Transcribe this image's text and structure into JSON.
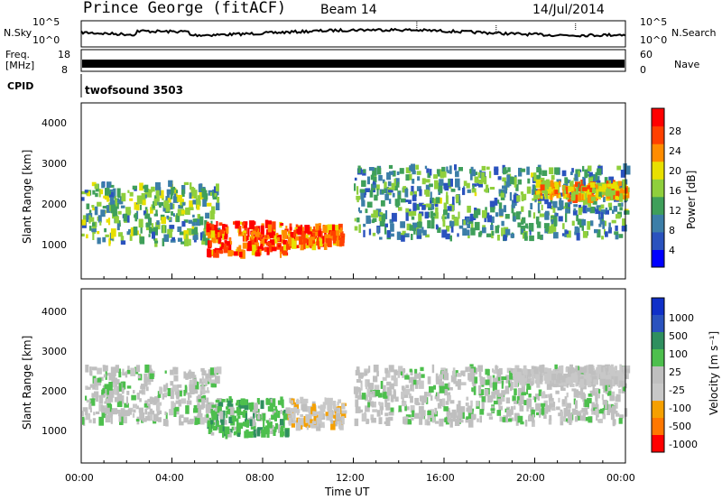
{
  "header": {
    "site": "Prince George (fitACF)",
    "beam": "Beam 14",
    "date": "14/Jul/2014"
  },
  "status_panels": {
    "nsky_label": "N.Sky",
    "nsearch_label": "N.Search",
    "log_ticks": [
      "10^5",
      "10^0"
    ],
    "freq_label_1": "Freq.",
    "freq_label_2": "[MHz]",
    "freq_ticks": [
      "18",
      "8"
    ],
    "nave_label": "Nave",
    "nave_ticks": [
      "60",
      "0"
    ],
    "cpid_label": "CPID",
    "cpid_value": "twofsound 3503"
  },
  "x_axis": {
    "label": "Time UT",
    "ticks": [
      "00:00",
      "04:00",
      "08:00",
      "12:00",
      "16:00",
      "20:00",
      "00:00"
    ]
  },
  "colors": {
    "power_scale": [
      "#0000ff",
      "#2a52be",
      "#3c7ea8",
      "#3f9f5a",
      "#8fcf3c",
      "#e8e000",
      "#ff8c00",
      "#ff4000",
      "#ff0000"
    ],
    "velocity_scale": [
      "#ff0000",
      "#ff7700",
      "#f5a000",
      "#c8c8c8",
      "#bfbfbf",
      "#4dbf4d",
      "#2f8f5f",
      "#2a52be",
      "#1030c8"
    ]
  },
  "chart_data": [
    {
      "type": "heatmap",
      "panel": "power",
      "x": [
        "00:00",
        "04:00",
        "08:00",
        "12:00",
        "16:00",
        "20:00",
        "00:00"
      ],
      "ylabel": "Slant Range [km]",
      "y_ticks": [
        1000,
        2000,
        3000,
        4000
      ],
      "ylim": [
        200,
        4600
      ],
      "colorbar_label": "Power [dB]",
      "colorbar_ticks": [
        4,
        8,
        12,
        16,
        20,
        24,
        28
      ],
      "zlim": [
        0,
        30
      ],
      "features": [
        {
          "t_start_h": 0.0,
          "t_end_h": 6.0,
          "range_km": [
            1100,
            2600
          ],
          "level_db": 12
        },
        {
          "t_start_h": 5.5,
          "t_end_h": 9.0,
          "range_km": [
            800,
            1600
          ],
          "level_db": 26
        },
        {
          "t_start_h": 9.0,
          "t_end_h": 11.5,
          "range_km": [
            1000,
            1500
          ],
          "level_db": 24
        },
        {
          "t_start_h": 12.0,
          "t_end_h": 24.0,
          "range_km": [
            1200,
            3000
          ],
          "level_db": 10
        },
        {
          "t_start_h": 20.0,
          "t_end_h": 24.0,
          "range_km": [
            2200,
            2600
          ],
          "level_db": 20
        }
      ]
    },
    {
      "type": "heatmap",
      "panel": "velocity",
      "x": [
        "00:00",
        "04:00",
        "08:00",
        "12:00",
        "16:00",
        "20:00",
        "00:00"
      ],
      "ylabel": "Slant Range [km]",
      "y_ticks": [
        1000,
        2000,
        3000,
        4000
      ],
      "ylim": [
        200,
        4600
      ],
      "colorbar_label": "Velocity [m s⁻¹]",
      "colorbar_ticks": [
        1000,
        500,
        100,
        25,
        -25,
        -100,
        -500,
        -1000
      ],
      "zlim": [
        -1200,
        1200
      ],
      "features": [
        {
          "t_start_h": 0.0,
          "t_end_h": 6.0,
          "range_km": [
            1200,
            2600
          ],
          "velocity": 0
        },
        {
          "t_start_h": 5.5,
          "t_end_h": 9.0,
          "range_km": [
            900,
            1800
          ],
          "velocity": 300
        },
        {
          "t_start_h": 9.0,
          "t_end_h": 11.5,
          "range_km": [
            1100,
            1800
          ],
          "velocity": -300
        },
        {
          "t_start_h": 12.0,
          "t_end_h": 24.0,
          "range_km": [
            1200,
            2600
          ],
          "velocity": 0
        },
        {
          "t_start_h": 19.0,
          "t_end_h": 24.0,
          "range_km": [
            2200,
            2600
          ],
          "velocity": -200
        }
      ]
    }
  ]
}
